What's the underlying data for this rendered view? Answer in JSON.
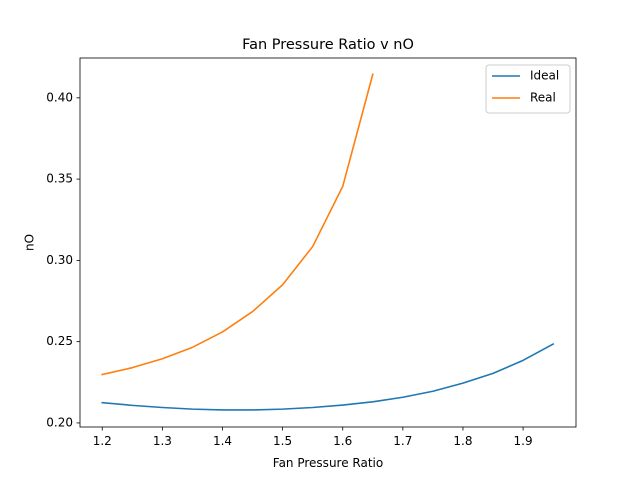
{
  "chart_data": {
    "type": "line",
    "title": "Fan Pressure Ratio v nO",
    "xlabel": "Fan Pressure Ratio",
    "ylabel": "nO",
    "xlim": [
      1.163,
      1.988
    ],
    "ylim": [
      0.1975,
      0.4245
    ],
    "xticks": [
      1.2,
      1.3,
      1.4,
      1.5,
      1.6,
      1.7,
      1.8,
      1.9
    ],
    "xtick_labels": [
      "1.2",
      "1.3",
      "1.4",
      "1.5",
      "1.6",
      "1.7",
      "1.8",
      "1.9"
    ],
    "yticks": [
      0.2,
      0.25,
      0.3,
      0.35,
      0.4
    ],
    "ytick_labels": [
      "0.20",
      "0.25",
      "0.30",
      "0.35",
      "0.40"
    ],
    "grid": false,
    "legend": "top-right",
    "series": [
      {
        "name": "Ideal",
        "color": "#1f77b4",
        "x": [
          1.2,
          1.25,
          1.3,
          1.35,
          1.4,
          1.45,
          1.5,
          1.55,
          1.6,
          1.65,
          1.7,
          1.75,
          1.8,
          1.85,
          1.9,
          1.95
        ],
        "y": [
          0.2125,
          0.2108,
          0.2095,
          0.2085,
          0.208,
          0.208,
          0.2085,
          0.2095,
          0.211,
          0.213,
          0.2158,
          0.2195,
          0.2245,
          0.2305,
          0.2385,
          0.2485
        ]
      },
      {
        "name": "Real",
        "color": "#ff7f0e",
        "x": [
          1.2,
          1.25,
          1.3,
          1.35,
          1.4,
          1.45,
          1.5,
          1.55,
          1.6,
          1.65
        ],
        "y": [
          0.2298,
          0.234,
          0.2395,
          0.2465,
          0.256,
          0.2685,
          0.285,
          0.3085,
          0.3455,
          0.4145
        ]
      }
    ]
  }
}
